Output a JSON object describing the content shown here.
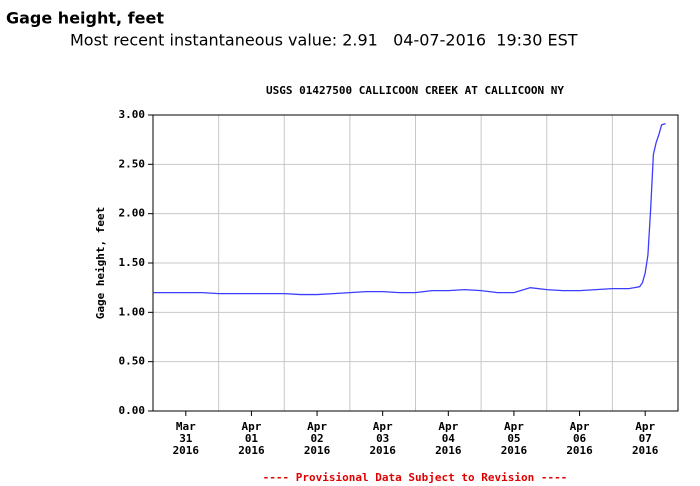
{
  "header": {
    "title": "Gage height, feet",
    "recent": "Most recent instantaneous value: 2.91   04-07-2016  19:30 EST"
  },
  "chart_data": {
    "type": "line",
    "title": "USGS 01427500 CALLICOON CREEK AT CALLICOON NY",
    "ylabel": "Gage height, feet",
    "footer": "---- Provisional Data Subject to Revision ----",
    "color": "#3c3cff",
    "xlim": [
      "2016-03-31T00:00",
      "2016-04-08T00:00"
    ],
    "ylim": [
      0,
      3
    ],
    "yticks": [
      {
        "value": 0,
        "label": "0.00"
      },
      {
        "value": 0.5,
        "label": "0.50"
      },
      {
        "value": 1,
        "label": "1.00"
      },
      {
        "value": 1.5,
        "label": "1.50"
      },
      {
        "value": 2,
        "label": "2.00"
      },
      {
        "value": 2.5,
        "label": "2.50"
      },
      {
        "value": 3,
        "label": "3.00"
      }
    ],
    "xticks": [
      {
        "value": "2016-03-31T12:00",
        "label": "Mar 31 2016"
      },
      {
        "value": "2016-04-01T12:00",
        "label": "Apr 01 2016"
      },
      {
        "value": "2016-04-02T12:00",
        "label": "Apr 02 2016"
      },
      {
        "value": "2016-04-03T12:00",
        "label": "Apr 03 2016"
      },
      {
        "value": "2016-04-04T12:00",
        "label": "Apr 04 2016"
      },
      {
        "value": "2016-04-05T12:00",
        "label": "Apr 05 2016"
      },
      {
        "value": "2016-04-06T12:00",
        "label": "Apr 06 2016"
      },
      {
        "value": "2016-04-07T12:00",
        "label": "Apr 07 2016"
      }
    ],
    "xgrid": [
      "2016-04-01T00:00",
      "2016-04-02T00:00",
      "2016-04-03T00:00",
      "2016-04-04T00:00",
      "2016-04-05T00:00",
      "2016-04-06T00:00",
      "2016-04-07T00:00"
    ],
    "grid": true,
    "x": [
      "2016-03-31T00:00",
      "2016-03-31T06:00",
      "2016-03-31T12:00",
      "2016-03-31T18:00",
      "2016-04-01T00:00",
      "2016-04-01T06:00",
      "2016-04-01T12:00",
      "2016-04-01T18:00",
      "2016-04-02T00:00",
      "2016-04-02T06:00",
      "2016-04-02T12:00",
      "2016-04-02T18:00",
      "2016-04-03T00:00",
      "2016-04-03T06:00",
      "2016-04-03T12:00",
      "2016-04-03T18:00",
      "2016-04-04T00:00",
      "2016-04-04T06:00",
      "2016-04-04T12:00",
      "2016-04-04T18:00",
      "2016-04-05T00:00",
      "2016-04-05T06:00",
      "2016-04-05T12:00",
      "2016-04-05T18:00",
      "2016-04-06T00:00",
      "2016-04-06T06:00",
      "2016-04-06T12:00",
      "2016-04-06T18:00",
      "2016-04-07T00:00",
      "2016-04-07T06:00",
      "2016-04-07T10:00",
      "2016-04-07T11:00",
      "2016-04-07T12:00",
      "2016-04-07T13:00",
      "2016-04-07T14:00",
      "2016-04-07T15:00",
      "2016-04-07T16:00",
      "2016-04-07T17:00",
      "2016-04-07T18:00",
      "2016-04-07T19:00",
      "2016-04-07T19:30"
    ],
    "values": [
      1.2,
      1.2,
      1.2,
      1.2,
      1.19,
      1.19,
      1.19,
      1.19,
      1.19,
      1.18,
      1.18,
      1.19,
      1.2,
      1.21,
      1.21,
      1.2,
      1.2,
      1.22,
      1.22,
      1.23,
      1.22,
      1.2,
      1.2,
      1.25,
      1.23,
      1.22,
      1.22,
      1.23,
      1.24,
      1.24,
      1.26,
      1.3,
      1.4,
      1.58,
      2.05,
      2.6,
      2.72,
      2.8,
      2.9,
      2.91,
      2.91
    ]
  }
}
